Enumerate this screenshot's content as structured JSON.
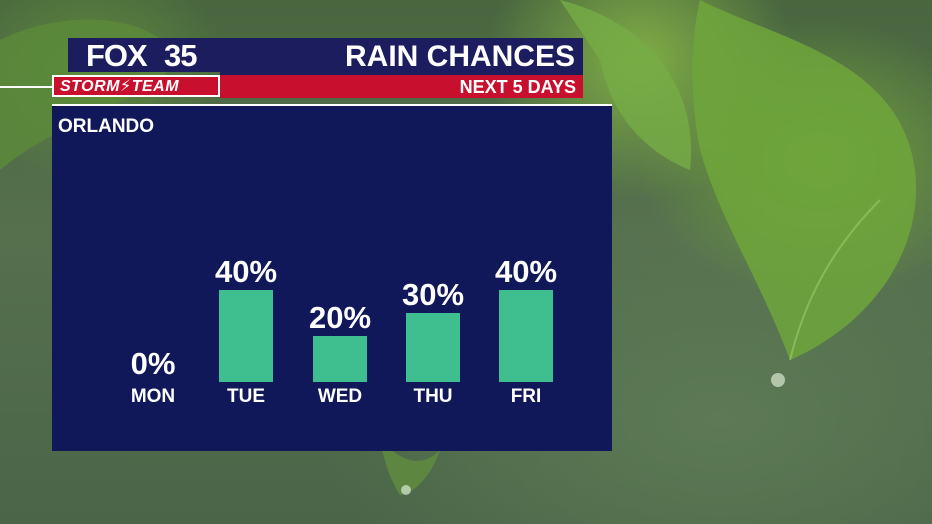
{
  "brand": {
    "logo_fox": "FOX",
    "logo_number": "35",
    "logo_team": "STORM⚡TEAM"
  },
  "header": {
    "title": "RAIN CHANCES",
    "subtitle": "NEXT 5 DAYS"
  },
  "location": "ORLANDO",
  "colors": {
    "navy": "#1b1d5e",
    "panel": "#11185a",
    "red": "#c8102e",
    "bar": "#3fbf8f"
  },
  "chart_data": {
    "type": "bar",
    "categories": [
      "MON",
      "TUE",
      "WED",
      "THU",
      "FRI"
    ],
    "values": [
      0,
      40,
      20,
      30,
      40
    ],
    "value_labels": [
      "0%",
      "40%",
      "20%",
      "30%",
      "40%"
    ],
    "ylim": [
      0,
      100
    ],
    "grid": false
  }
}
